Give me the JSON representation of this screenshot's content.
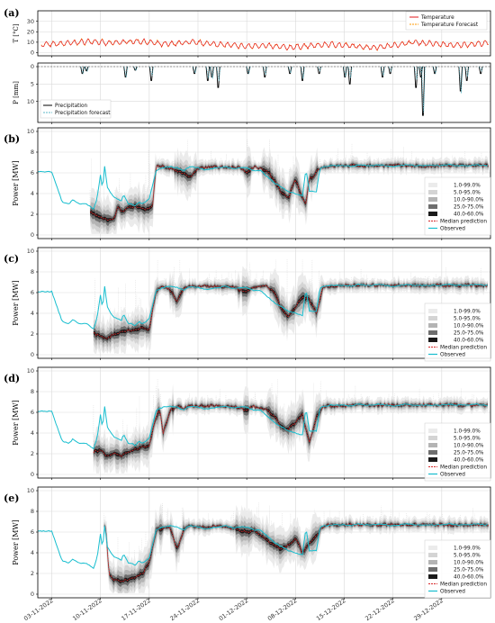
{
  "chart_data": [
    {
      "panel": "(a)",
      "type": "line",
      "ylabel": "T [°C]",
      "ylim": [
        -3,
        40
      ],
      "yticks": [
        0,
        10,
        20,
        30
      ],
      "legend": [
        "Temperature",
        "Temperature Forecast"
      ],
      "legend_position": "top-right",
      "colors": {
        "Temperature": "#e31a1c",
        "Temperature Forecast": "#ff9900"
      },
      "series_profile": {
        "x_days": [
          0,
          2,
          4,
          6,
          8,
          10,
          12,
          14,
          16,
          18,
          20,
          22,
          24,
          26,
          28,
          30,
          32,
          34,
          36,
          38,
          40,
          42,
          44,
          46,
          48,
          50,
          52,
          54,
          56,
          58,
          60,
          62
        ],
        "temperature": [
          8,
          9,
          10,
          11,
          9,
          10,
          11,
          10,
          8,
          9,
          10,
          9,
          8,
          7,
          6,
          7,
          6,
          5,
          6,
          7,
          8,
          7,
          6,
          5,
          6,
          8,
          10,
          9,
          8,
          7,
          8,
          9
        ]
      }
    },
    {
      "panel": "(a)",
      "type": "bar",
      "ylabel": "P [mm]",
      "ylim": [
        0,
        15
      ],
      "inverted_y": true,
      "yticks": [
        0,
        5,
        10
      ],
      "legend": [
        "Precipitation",
        "Precipitation forecast"
      ],
      "legend_position": "bottom-left",
      "colors": {
        "Precipitation": "#000000",
        "Precipitation forecast": "#5fb8c9"
      },
      "events": [
        {
          "day": 4.4,
          "mm": 2.0
        },
        {
          "day": 5.0,
          "mm": 1.2
        },
        {
          "day": 10.6,
          "mm": 3.0
        },
        {
          "day": 12.0,
          "mm": 1.0
        },
        {
          "day": 14.3,
          "mm": 4.0
        },
        {
          "day": 20.5,
          "mm": 2.0
        },
        {
          "day": 22.4,
          "mm": 4.0
        },
        {
          "day": 23.0,
          "mm": 3.0
        },
        {
          "day": 23.9,
          "mm": 6.0
        },
        {
          "day": 28.2,
          "mm": 2.0
        },
        {
          "day": 30.6,
          "mm": 3.0
        },
        {
          "day": 34.2,
          "mm": 2.0
        },
        {
          "day": 36.0,
          "mm": 4.0
        },
        {
          "day": 38.4,
          "mm": 2.0
        },
        {
          "day": 42.1,
          "mm": 3.0
        },
        {
          "day": 42.8,
          "mm": 5.0
        },
        {
          "day": 47.5,
          "mm": 3.0
        },
        {
          "day": 48.6,
          "mm": 2.0
        },
        {
          "day": 52.3,
          "mm": 6.0
        },
        {
          "day": 53.0,
          "mm": 3.0
        },
        {
          "day": 53.3,
          "mm": 14.0
        },
        {
          "day": 55.0,
          "mm": 2.0
        },
        {
          "day": 58.7,
          "mm": 7.0
        },
        {
          "day": 59.6,
          "mm": 4.0
        },
        {
          "day": 61.6,
          "mm": 2.0
        }
      ]
    },
    {
      "panel": "(b)",
      "type": "area",
      "ylabel": "Power [MW]",
      "ylim": [
        0,
        10
      ],
      "yticks": [
        0,
        2,
        4,
        6,
        8,
        10
      ],
      "legend": [
        "1.0-99.0%",
        "5.0-95.0%",
        "10.0-90.0%",
        "25.0-75.0%",
        "40.0-60.0%",
        "Median prediction",
        "Observed"
      ],
      "legend_position": "right",
      "observed": {
        "x_days": [
          0,
          1.5,
          2.5,
          3,
          4,
          5,
          6,
          6.5,
          7,
          7.3,
          7.6,
          8,
          8.5,
          9,
          10,
          10.3,
          11,
          11.5,
          12,
          12.5,
          13,
          13.5,
          14,
          15,
          16,
          17,
          18,
          19,
          19.5,
          20,
          21,
          22,
          23,
          24,
          25,
          26,
          27,
          28,
          29,
          30,
          31,
          32,
          33,
          34,
          35,
          36,
          36.5,
          37,
          37.5,
          38,
          38.5,
          39,
          39.5,
          40,
          41,
          42,
          43,
          44,
          45,
          46,
          47,
          48,
          49,
          50,
          51,
          52,
          53,
          54,
          55,
          56,
          57,
          58,
          59,
          60,
          61,
          62
        ],
        "values": [
          6.1,
          3.2,
          3.0,
          3.4,
          3.0,
          3.0,
          2.5,
          3.5,
          5.8,
          4.4,
          6.6,
          4.6,
          4.0,
          3.6,
          3.3,
          3.9,
          3.0,
          3.0,
          2.8,
          3.2,
          3.0,
          3.2,
          3.5,
          6.2,
          6.5,
          6.6,
          6.5,
          6.2,
          6.5,
          6.6,
          6.5,
          6.3,
          6.4,
          6.5,
          6.6,
          6.4,
          6.5,
          6.5,
          6.2,
          6.2,
          5.6,
          5.0,
          4.6,
          4.2,
          4.0,
          3.8,
          6.4,
          4.2,
          4.2,
          4.2,
          6.4,
          6.6,
          6.6,
          6.7,
          6.7,
          6.7,
          6.6,
          6.8,
          6.7,
          6.7,
          6.8,
          6.7,
          6.6,
          6.7,
          6.8,
          6.7,
          6.7,
          6.7,
          6.7,
          6.7,
          6.8,
          6.7,
          6.7,
          6.7,
          6.8,
          6.7
        ]
      },
      "median_prediction": {
        "x_days": [
          5.5,
          6,
          7,
          7.5,
          8,
          9,
          9.5,
          10,
          11,
          12,
          13,
          14,
          14.5,
          15,
          16,
          17,
          18,
          19,
          20,
          21,
          22,
          23,
          24,
          25,
          26,
          27,
          28,
          29,
          30,
          31,
          32,
          33,
          34,
          35,
          36,
          36.5,
          37,
          37.5,
          38,
          39,
          40,
          41,
          42,
          44,
          46,
          48,
          50,
          52,
          54,
          56,
          58,
          60,
          62
        ],
        "values": [
          2.2,
          2.0,
          1.8,
          1.6,
          1.4,
          1.6,
          2.8,
          2.2,
          2.6,
          2.8,
          2.6,
          2.4,
          3.0,
          6.6,
          6.6,
          6.4,
          6.2,
          6.0,
          5.5,
          6.5,
          6.5,
          6.6,
          6.5,
          6.6,
          6.5,
          6.5,
          6.0,
          6.6,
          6.4,
          6.2,
          5.2,
          4.0,
          3.6,
          5.4,
          3.5,
          3.1,
          5.5,
          5.6,
          6.2,
          6.6,
          6.6,
          6.7,
          6.7,
          6.7,
          6.7,
          6.7,
          6.7,
          6.7,
          6.6,
          6.7,
          6.7,
          6.7,
          6.7
        ]
      }
    },
    {
      "panel": "(c)",
      "type": "area",
      "ylabel": "Power [MW]",
      "ylim": [
        0,
        10
      ],
      "yticks": [
        0,
        2,
        4,
        6,
        8,
        10
      ],
      "legend": [
        "1.0-99.0%",
        "5.0-95.0%",
        "10.0-90.0%",
        "25.0-75.0%",
        "40.0-60.0%",
        "Median prediction",
        "Observed"
      ],
      "legend_position": "right",
      "median_prediction": {
        "x_days": [
          6,
          7,
          8,
          9,
          10,
          11,
          12,
          13,
          14,
          14.5,
          15,
          16,
          17,
          18,
          19,
          20,
          22,
          24,
          26,
          28,
          29,
          30,
          31,
          32,
          33,
          34,
          35,
          36,
          37,
          38,
          39,
          40,
          42,
          44,
          46,
          48,
          50,
          52,
          54,
          56,
          58,
          60,
          62
        ],
        "values": [
          2.0,
          1.8,
          1.6,
          2.0,
          2.2,
          2.4,
          2.4,
          2.6,
          2.4,
          4.4,
          6.2,
          6.6,
          6.2,
          5.2,
          6.5,
          6.6,
          6.6,
          6.6,
          6.5,
          6.0,
          6.6,
          6.5,
          6.6,
          6.0,
          4.4,
          3.6,
          4.6,
          5.6,
          5.3,
          4.0,
          6.6,
          6.6,
          6.7,
          6.7,
          6.7,
          6.7,
          6.7,
          6.7,
          6.7,
          6.7,
          6.7,
          6.7,
          6.7
        ]
      }
    },
    {
      "panel": "(d)",
      "type": "area",
      "ylabel": "Power [MW]",
      "ylim": [
        0,
        10
      ],
      "yticks": [
        0,
        2,
        4,
        6,
        8,
        10
      ],
      "legend": [
        "1.0-99.0%",
        "5.0-95.0%",
        "10.0-90.0%",
        "25.0-75.0%",
        "40.0-60.0%",
        "Median prediction",
        "Observed"
      ],
      "legend_position": "right",
      "median_prediction": {
        "x_days": [
          6,
          7,
          8,
          9,
          10,
          11,
          12,
          13,
          14,
          15,
          15.5,
          16,
          17,
          18,
          19,
          20,
          22,
          24,
          26,
          28,
          29,
          30,
          31,
          32,
          33,
          34,
          35,
          36,
          37,
          38,
          39,
          40,
          42,
          44,
          46,
          48,
          50,
          52,
          54,
          56,
          58,
          60,
          62
        ],
        "values": [
          2.2,
          2.4,
          1.8,
          2.0,
          1.8,
          2.2,
          2.4,
          2.6,
          2.8,
          5.6,
          6.4,
          4.0,
          6.2,
          6.6,
          6.4,
          6.6,
          6.6,
          6.6,
          6.6,
          6.2,
          6.6,
          6.4,
          6.2,
          5.6,
          4.6,
          4.4,
          5.0,
          5.8,
          3.0,
          5.5,
          6.6,
          6.6,
          6.6,
          6.7,
          6.7,
          6.7,
          6.7,
          6.7,
          6.7,
          6.7,
          6.7,
          6.7,
          6.7
        ]
      }
    },
    {
      "panel": "(e)",
      "type": "area",
      "ylabel": "Power [MW]",
      "ylim": [
        0,
        10
      ],
      "yticks": [
        0,
        2,
        4,
        6,
        8,
        10
      ],
      "legend": [
        "1.0-99.0%",
        "5.0-95.0%",
        "10.0-90.0%",
        "25.0-75.0%",
        "40.0-60.0%",
        "Median prediction",
        "Observed"
      ],
      "legend_position": "right",
      "median_prediction": {
        "x_days": [
          7.5,
          7.8,
          8.2,
          9,
          10,
          11,
          12,
          13,
          14,
          15,
          16,
          17,
          18,
          19,
          20,
          22,
          24,
          26,
          28,
          29,
          30,
          31,
          32,
          33,
          34,
          35,
          36,
          37,
          38,
          39,
          40,
          42,
          44,
          46,
          48,
          50,
          52,
          54,
          56,
          58,
          60,
          62
        ],
        "values": [
          6.6,
          6.4,
          1.8,
          1.4,
          1.2,
          1.4,
          1.6,
          2.0,
          3.0,
          6.2,
          6.4,
          6.4,
          4.2,
          6.4,
          6.6,
          6.4,
          6.6,
          6.4,
          6.0,
          6.2,
          5.6,
          5.2,
          4.6,
          4.4,
          4.8,
          5.4,
          4.0,
          4.8,
          5.6,
          6.6,
          6.7,
          6.7,
          6.7,
          6.7,
          6.7,
          6.7,
          6.7,
          6.7,
          6.7,
          6.7,
          6.7,
          6.7
        ]
      }
    }
  ],
  "x_axis": {
    "tick_labels": [
      "03-11-2022",
      "10-11-2022",
      "17-11-2022",
      "24-11-2022",
      "01-12-2022",
      "08-12-2022",
      "15-12-2022",
      "22-12-2022",
      "29-12-2022"
    ],
    "tick_days": [
      0,
      7,
      14,
      21,
      28,
      35,
      42,
      49,
      56
    ],
    "range_days": [
      -2,
      63
    ]
  },
  "panel_labels": [
    "(a)",
    "(b)",
    "(c)",
    "(d)",
    "(e)"
  ],
  "colors": {
    "observed": "#17becf",
    "median": "#d62728",
    "band_1_99": "#ebebeb",
    "band_5_95": "#d4d4d4",
    "band_10_90": "#b4b4b4",
    "band_25_75": "#6e6e6e",
    "band_40_60": "#1a1a1a"
  }
}
